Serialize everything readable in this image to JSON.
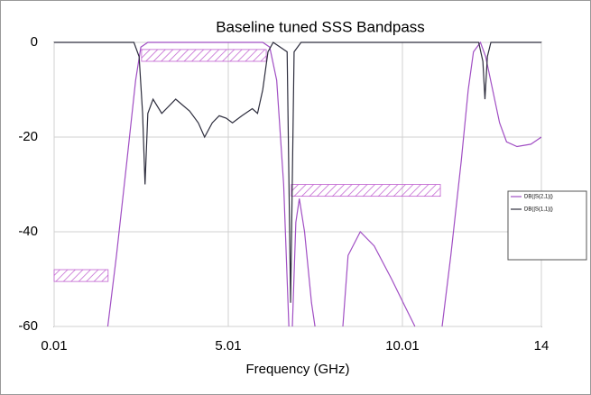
{
  "chart_data": {
    "type": "line",
    "title": "Baseline tuned SSS Bandpass",
    "xlabel": "Frequency (GHz)",
    "xlim": [
      0.01,
      14
    ],
    "ylim": [
      -60,
      0
    ],
    "xticks": [
      0.01,
      5.01,
      10.01,
      14
    ],
    "yticks": [
      0,
      -20,
      -40,
      -60
    ],
    "grid": true,
    "legend": "right",
    "series": [
      {
        "name": "DB(|S(2,1)|)",
        "color": "#a14fc4",
        "x": [
          0.01,
          1.55,
          1.8,
          2.1,
          2.35,
          2.5,
          2.7,
          4,
          6,
          6.2,
          6.4,
          6.6,
          6.75,
          6.8,
          6.85,
          6.95,
          7.05,
          7.2,
          7.4,
          7.5,
          7.6,
          8.3,
          8.45,
          8.8,
          9.2,
          9.7,
          10.1,
          10.37,
          10.5,
          11.15,
          11.4,
          11.7,
          11.9,
          12.05,
          12.25,
          12.4,
          12.6,
          12.8,
          13.0,
          13.3,
          13.7,
          14
        ],
        "values": [
          null,
          -60,
          -45,
          -25,
          -8,
          -1,
          0,
          0,
          0,
          -1,
          -8,
          -30,
          -60,
          null,
          -60,
          -38,
          -33,
          -40,
          -55,
          -60,
          null,
          -60,
          -45,
          -40,
          -43,
          -50,
          -56,
          -60,
          null,
          -60,
          -45,
          -25,
          -10,
          -2,
          0,
          -3,
          -10,
          -17,
          -21,
          -22,
          -21.5,
          -20
        ]
      },
      {
        "name": "DB(|S(1,1)|)",
        "color": "#2e2e3e",
        "x": [
          0.01,
          2.3,
          2.45,
          2.55,
          2.62,
          2.7,
          2.85,
          3.1,
          3.5,
          3.9,
          4.15,
          4.33,
          4.55,
          4.75,
          4.95,
          5.13,
          5.4,
          5.7,
          5.85,
          6.0,
          6.15,
          6.3,
          6.7,
          6.8,
          6.9,
          7.1,
          12.2,
          12.32,
          12.38,
          12.45,
          12.55,
          14
        ],
        "values": [
          0,
          0,
          -3,
          -15,
          -30,
          -15,
          -12,
          -15,
          -12,
          -14.5,
          -17,
          -20,
          -17,
          -15.5,
          -16,
          -17,
          -15.5,
          -14,
          -15,
          -10,
          -2,
          0,
          -2,
          -55,
          -2,
          0,
          0,
          -4,
          -12,
          -3,
          0,
          0
        ]
      }
    ],
    "masks": [
      {
        "x": [
          0.01,
          1.56
        ],
        "y": [
          -48,
          -50.5
        ]
      },
      {
        "x": [
          2.52,
          6.1
        ],
        "y": [
          -1.5,
          -4
        ]
      },
      {
        "x": [
          6.82,
          11.1
        ],
        "y": [
          -30,
          -32.5
        ]
      }
    ]
  }
}
